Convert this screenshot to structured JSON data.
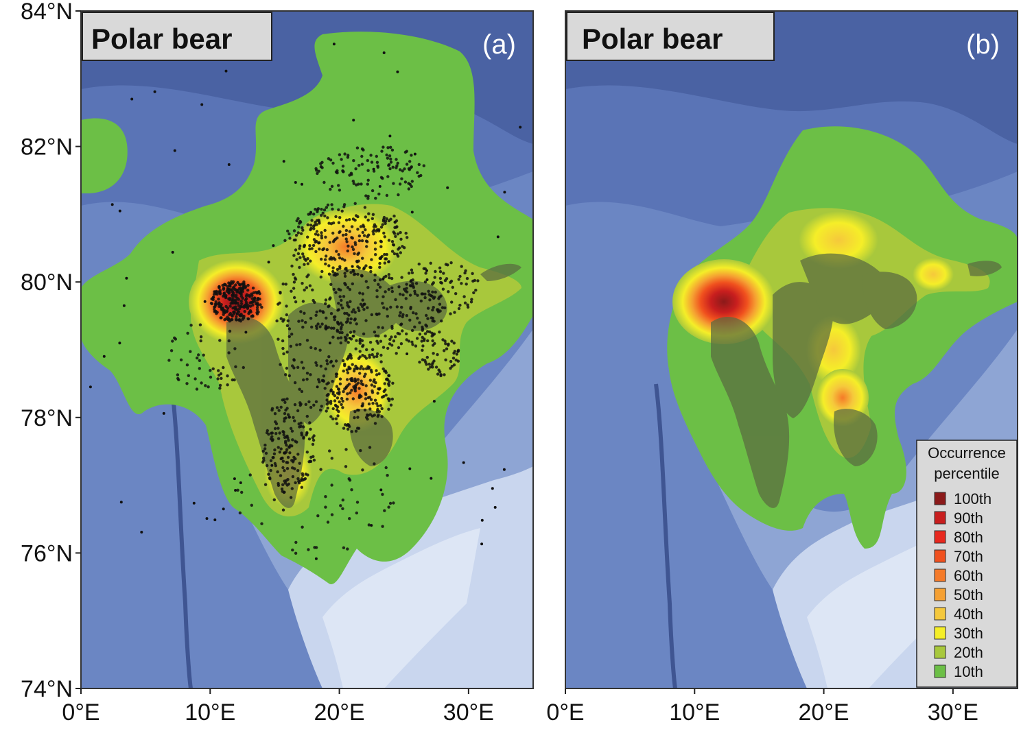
{
  "figure": {
    "panels": [
      {
        "id": "a",
        "title": "Polar bear",
        "letter": "(a)",
        "shows_observation_points": true
      },
      {
        "id": "b",
        "title": "Polar bear",
        "letter": "(b)",
        "shows_observation_points": false
      }
    ],
    "y_axis": {
      "ticks": [
        "84°N",
        "82°N",
        "80°N",
        "78°N",
        "76°N",
        "74°N"
      ],
      "range": [
        74,
        84
      ]
    },
    "x_axis": {
      "ticks": [
        "0°E",
        "10°E",
        "20°E",
        "30°E"
      ],
      "range": [
        0,
        35
      ]
    },
    "legend": {
      "title_line1": "Occurrence",
      "title_line2": "percentile",
      "entries": [
        {
          "label": "100th",
          "color": "#8b1a1a"
        },
        {
          "label": "90th",
          "color": "#c81e1e"
        },
        {
          "label": "80th",
          "color": "#e8281e"
        },
        {
          "label": "70th",
          "color": "#f0501e"
        },
        {
          "label": "60th",
          "color": "#f57a28"
        },
        {
          "label": "50th",
          "color": "#f5a032"
        },
        {
          "label": "40th",
          "color": "#f5c83c"
        },
        {
          "label": "30th",
          "color": "#f5ee28"
        },
        {
          "label": "20th",
          "color": "#a8c83c"
        },
        {
          "label": "10th",
          "color": "#6cbf46"
        }
      ]
    },
    "colors": {
      "deep_ocean": "#4a62a3",
      "mid_ocean": "#6b86c3",
      "shelf": "#a5b8de",
      "shallow": "#c9d6ee",
      "land_overlay": "#5a6b40"
    }
  }
}
